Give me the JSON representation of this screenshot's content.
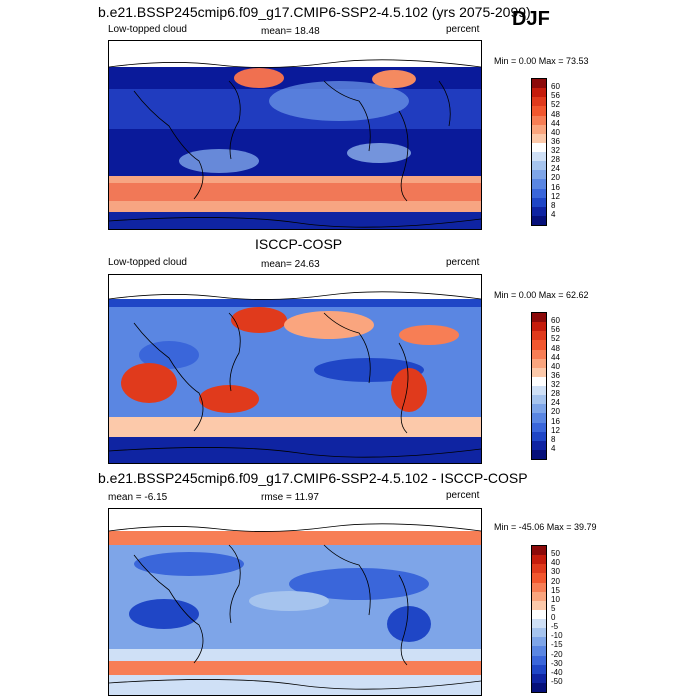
{
  "header": {
    "title": "b.e21.BSSP245cmip6.f09_g17.CMIP6-SSP2-4.5.102 (yrs 2075-2099)",
    "season": "DJF"
  },
  "panels": [
    {
      "title": "b.e21.BSSP245cmip6.f09_g17.CMIP6-SSP2-4.5.102 (yrs 2075-2099)",
      "left": "Low-topped cloud",
      "center": "mean=  18.48",
      "right": "percent",
      "minmax": "Min =   0.00 Max =  73.53"
    },
    {
      "title": "ISCCP-COSP",
      "left": "Low-topped cloud",
      "center": "mean=  24.63",
      "right": "percent",
      "minmax": "Min =   0.00 Max =  62.62"
    },
    {
      "title": "b.e21.BSSP245cmip6.f09_g17.CMIP6-SSP2-4.5.102 - ISCCP-COSP",
      "left": "mean =  -6.15",
      "center": "rmse =  11.97",
      "right": "percent",
      "minmax": "Min = -45.06 Max =  39.79"
    }
  ],
  "colorbars": [
    {
      "labels": [
        "60",
        "56",
        "52",
        "48",
        "44",
        "40",
        "36",
        "32",
        "28",
        "24",
        "20",
        "16",
        "12",
        "8",
        "4"
      ],
      "colors": [
        "#8c0a0a",
        "#c51c0c",
        "#e03a1c",
        "#f2572e",
        "#f77e55",
        "#faa57e",
        "#fcc9aa",
        "#ffffff",
        "#cfe0f6",
        "#a6c4ee",
        "#7ea5e8",
        "#5a86e2",
        "#3a66da",
        "#1f46c6",
        "#0f24a2",
        "#06107a"
      ]
    },
    {
      "labels": [
        "60",
        "56",
        "52",
        "48",
        "44",
        "40",
        "36",
        "32",
        "28",
        "24",
        "20",
        "16",
        "12",
        "8",
        "4"
      ],
      "colors": [
        "#8c0a0a",
        "#c51c0c",
        "#e03a1c",
        "#f2572e",
        "#f77e55",
        "#faa57e",
        "#fcc9aa",
        "#ffffff",
        "#cfe0f6",
        "#a6c4ee",
        "#7ea5e8",
        "#5a86e2",
        "#3a66da",
        "#1f46c6",
        "#0f24a2",
        "#06107a"
      ]
    },
    {
      "labels": [
        "50",
        "40",
        "30",
        "20",
        "15",
        "10",
        "5",
        "0",
        "-5",
        "-10",
        "-15",
        "-20",
        "-30",
        "-40",
        "-50"
      ],
      "colors": [
        "#8c0a0a",
        "#c51c0c",
        "#e03a1c",
        "#f2572e",
        "#f77e55",
        "#faa57e",
        "#fcc9aa",
        "#ffffff",
        "#cfe0f6",
        "#a6c4ee",
        "#7ea5e8",
        "#5a86e2",
        "#3a66da",
        "#1f46c6",
        "#0f24a2",
        "#06107a"
      ]
    }
  ]
}
